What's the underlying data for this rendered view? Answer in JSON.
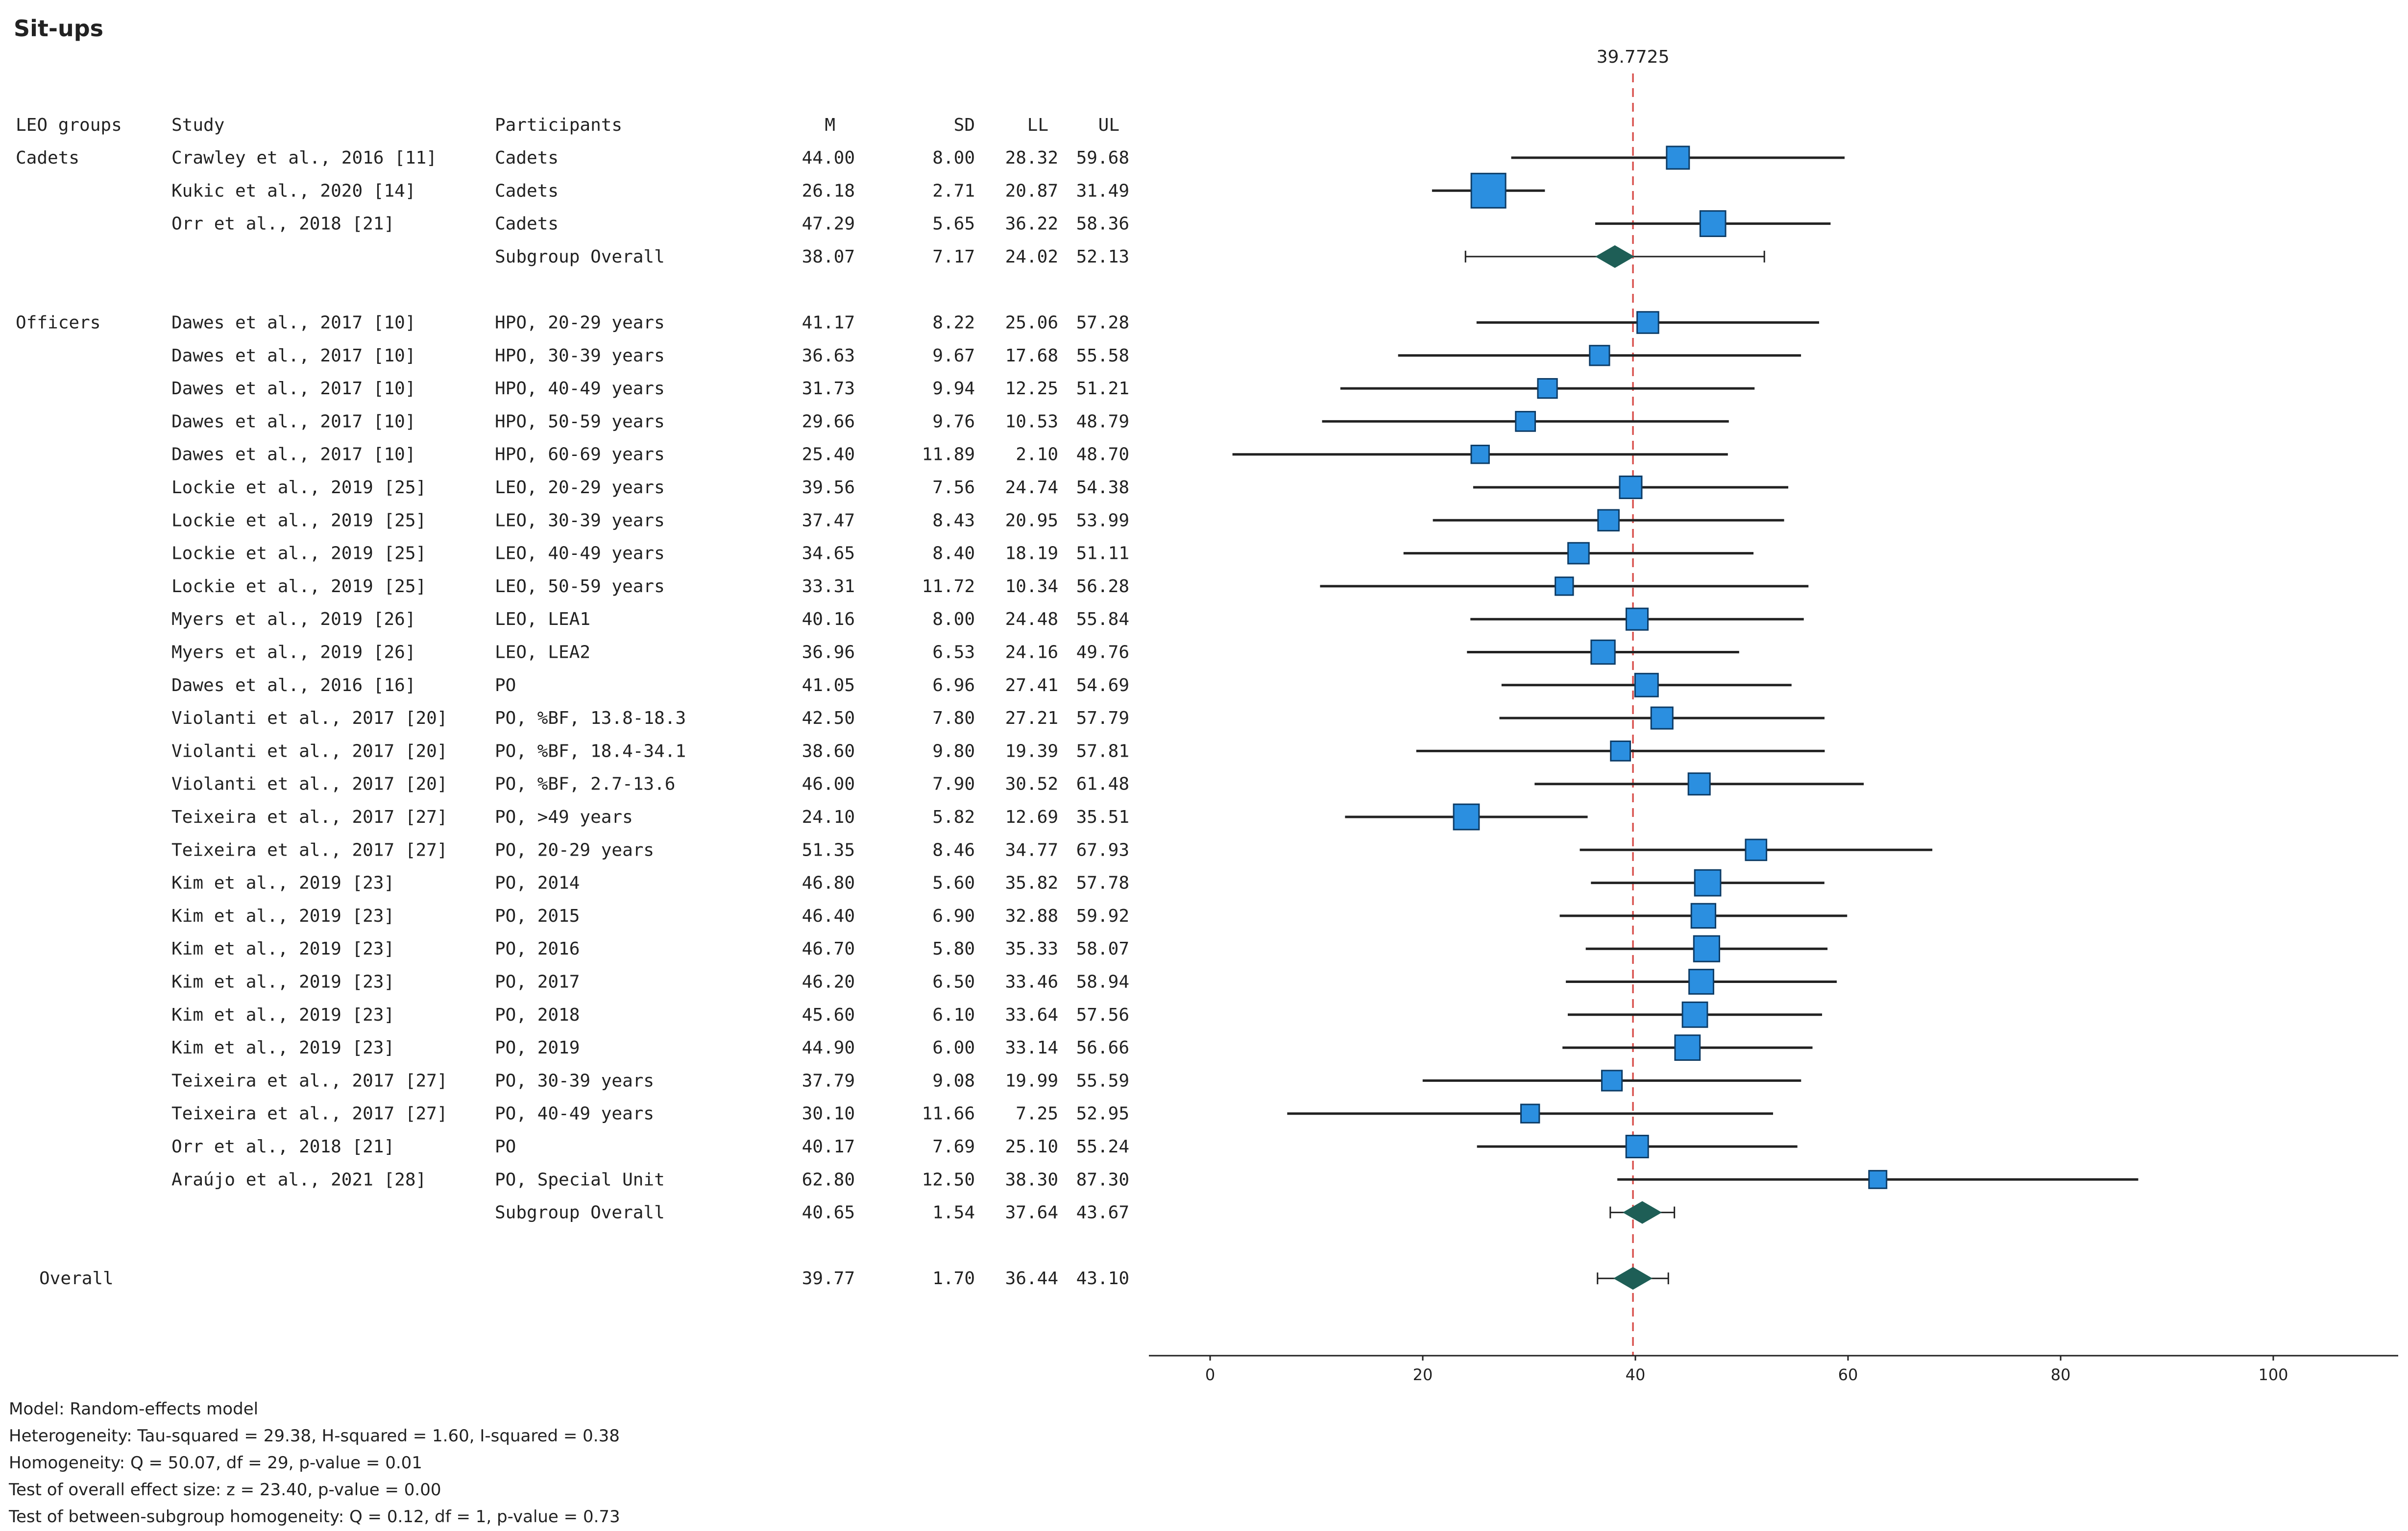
{
  "chart_data": {
    "type": "forest",
    "title": "Sit-ups",
    "reference_label": "39.7725",
    "reference_value": 39.7725,
    "xlim": [
      -5,
      112
    ],
    "xticks": [
      0,
      20,
      40,
      60,
      80,
      100
    ],
    "columns": [
      "LEO groups",
      "Study",
      "Participants",
      "M",
      "SD",
      "LL",
      "UL"
    ],
    "rows": [
      {
        "type": "study",
        "group": "Cadets",
        "study": "Crawley et al., 2016 [11]",
        "participants": "Cadets",
        "m": "44.00",
        "sd": "8.00",
        "ll": "28.32",
        "ul": "59.68",
        "size": 0.5
      },
      {
        "type": "study",
        "group": "",
        "study": "Kukic et al., 2020 [14]",
        "participants": "Cadets",
        "m": "26.18",
        "sd": "2.71",
        "ll": "20.87",
        "ul": "31.49",
        "size": 1.0
      },
      {
        "type": "study",
        "group": "",
        "study": "Orr et al., 2018 [21]",
        "participants": "Cadets",
        "m": "47.29",
        "sd": "5.65",
        "ll": "36.22",
        "ul": "58.36",
        "size": 0.62
      },
      {
        "type": "summary",
        "group": "",
        "study": "",
        "participants": "Subgroup Overall",
        "m": "38.07",
        "sd": "7.17",
        "ll": "24.02",
        "ul": "52.13"
      },
      {
        "type": "blank"
      },
      {
        "type": "study",
        "group": "Officers",
        "study": "Dawes et al., 2017 [10]",
        "participants": "HPO, 20-29 years",
        "m": "41.17",
        "sd": "8.22",
        "ll": "25.06",
        "ul": "57.28",
        "size": 0.45
      },
      {
        "type": "study",
        "group": "",
        "study": "Dawes et al., 2017 [10]",
        "participants": "HPO, 30-39 years",
        "m": "36.63",
        "sd": "9.67",
        "ll": "17.68",
        "ul": "55.58",
        "size": 0.38
      },
      {
        "type": "study",
        "group": "",
        "study": "Dawes et al., 2017 [10]",
        "participants": "HPO, 40-49 years",
        "m": "31.73",
        "sd": "9.94",
        "ll": "12.25",
        "ul": "51.21",
        "size": 0.36
      },
      {
        "type": "study",
        "group": "",
        "study": "Dawes et al., 2017 [10]",
        "participants": "HPO, 50-59 years",
        "m": "29.66",
        "sd": "9.76",
        "ll": "10.53",
        "ul": "48.79",
        "size": 0.37
      },
      {
        "type": "study",
        "group": "",
        "study": "Dawes et al., 2017 [10]",
        "participants": "HPO, 60-69 years",
        "m": "25.40",
        "sd": "11.89",
        "ll": "2.10",
        "ul": "48.70",
        "size": 0.3
      },
      {
        "type": "study",
        "group": "",
        "study": "Lockie et al., 2019 [25]",
        "participants": "LEO, 20-29 years",
        "m": "39.56",
        "sd": "7.56",
        "ll": "24.74",
        "ul": "54.38",
        "size": 0.48
      },
      {
        "type": "study",
        "group": "",
        "study": "Lockie et al., 2019 [25]",
        "participants": "LEO, 30-39 years",
        "m": "37.47",
        "sd": "8.43",
        "ll": "20.95",
        "ul": "53.99",
        "size": 0.43
      },
      {
        "type": "study",
        "group": "",
        "study": "Lockie et al., 2019 [25]",
        "participants": "LEO, 40-49 years",
        "m": "34.65",
        "sd": "8.40",
        "ll": "18.19",
        "ul": "51.11",
        "size": 0.43
      },
      {
        "type": "study",
        "group": "",
        "study": "Lockie et al., 2019 [25]",
        "participants": "LEO, 50-59 years",
        "m": "33.31",
        "sd": "11.72",
        "ll": "10.34",
        "ul": "56.28",
        "size": 0.3
      },
      {
        "type": "study",
        "group": "",
        "study": "Myers et al., 2019 [26]",
        "participants": "LEO, LEA1",
        "m": "40.16",
        "sd": "8.00",
        "ll": "24.48",
        "ul": "55.84",
        "size": 0.46
      },
      {
        "type": "study",
        "group": "",
        "study": "Myers et al., 2019 [26]",
        "participants": "LEO, LEA2",
        "m": "36.96",
        "sd": "6.53",
        "ll": "24.16",
        "ul": "49.76",
        "size": 0.55
      },
      {
        "type": "study",
        "group": "",
        "study": "Dawes et al., 2016 [16]",
        "participants": "PO",
        "m": "41.05",
        "sd": "6.96",
        "ll": "27.41",
        "ul": "54.69",
        "size": 0.52
      },
      {
        "type": "study",
        "group": "",
        "study": "Violanti et al., 2017 [20]",
        "participants": "PO, %BF, 13.8-18.3",
        "m": "42.50",
        "sd": "7.80",
        "ll": "27.21",
        "ul": "57.79",
        "size": 0.46
      },
      {
        "type": "study",
        "group": "",
        "study": "Violanti et al., 2017 [20]",
        "participants": "PO, %BF, 18.4-34.1",
        "m": "38.60",
        "sd": "9.80",
        "ll": "19.39",
        "ul": "57.81",
        "size": 0.37
      },
      {
        "type": "study",
        "group": "",
        "study": "Violanti et al., 2017 [20]",
        "participants": "PO, %BF, 2.7-13.6",
        "m": "46.00",
        "sd": "7.90",
        "ll": "30.52",
        "ul": "61.48",
        "size": 0.46
      },
      {
        "type": "study",
        "group": "",
        "study": "Teixeira et al., 2017 [27]",
        "participants": "PO, >49 years",
        "m": "24.10",
        "sd": "5.82",
        "ll": "12.69",
        "ul": "35.51",
        "size": 0.62
      },
      {
        "type": "study",
        "group": "",
        "study": "Teixeira et al., 2017 [27]",
        "participants": "PO, 20-29 years",
        "m": "51.35",
        "sd": "8.46",
        "ll": "34.77",
        "ul": "67.93",
        "size": 0.43
      },
      {
        "type": "study",
        "group": "",
        "study": "Kim et al., 2019 [23]",
        "participants": "PO, 2014",
        "m": "46.80",
        "sd": "5.60",
        "ll": "35.82",
        "ul": "57.78",
        "size": 0.64
      },
      {
        "type": "study",
        "group": "",
        "study": "Kim et al., 2019 [23]",
        "participants": "PO, 2015",
        "m": "46.40",
        "sd": "6.90",
        "ll": "32.88",
        "ul": "59.92",
        "size": 0.57
      },
      {
        "type": "study",
        "group": "",
        "study": "Kim et al., 2019 [23]",
        "participants": "PO, 2016",
        "m": "46.70",
        "sd": "5.80",
        "ll": "35.33",
        "ul": "58.07",
        "size": 0.63
      },
      {
        "type": "study",
        "group": "",
        "study": "Kim et al., 2019 [23]",
        "participants": "PO, 2017",
        "m": "46.20",
        "sd": "6.50",
        "ll": "33.46",
        "ul": "58.94",
        "size": 0.58
      },
      {
        "type": "study",
        "group": "",
        "study": "Kim et al., 2019 [23]",
        "participants": "PO, 2018",
        "m": "45.60",
        "sd": "6.10",
        "ll": "33.64",
        "ul": "57.56",
        "size": 0.6
      },
      {
        "type": "study",
        "group": "",
        "study": "Kim et al., 2019 [23]",
        "participants": "PO, 2019",
        "m": "44.90",
        "sd": "6.00",
        "ll": "33.14",
        "ul": "56.66",
        "size": 0.6
      },
      {
        "type": "study",
        "group": "",
        "study": "Teixeira et al., 2017 [27]",
        "participants": "PO, 30-39 years",
        "m": "37.79",
        "sd": "9.08",
        "ll": "19.99",
        "ul": "55.59",
        "size": 0.4
      },
      {
        "type": "study",
        "group": "",
        "study": "Teixeira et al., 2017 [27]",
        "participants": "PO, 40-49 years",
        "m": "30.10",
        "sd": "11.66",
        "ll": "7.25",
        "ul": "52.95",
        "size": 0.32
      },
      {
        "type": "study",
        "group": "",
        "study": "Orr et al., 2018 [21]",
        "participants": "PO",
        "m": "40.17",
        "sd": "7.69",
        "ll": "25.10",
        "ul": "55.24",
        "size": 0.48
      },
      {
        "type": "study",
        "group": "",
        "study": "Araújo et al., 2021 [28]",
        "participants": "PO, Special  Unit",
        "m": "62.80",
        "sd": "12.50",
        "ll": "38.30",
        "ul": "87.30",
        "size": 0.29
      },
      {
        "type": "summary",
        "group": "",
        "study": "",
        "participants": "Subgroup Overall",
        "m": "40.65",
        "sd": "1.54",
        "ll": "37.64",
        "ul": "43.67"
      },
      {
        "type": "blank"
      },
      {
        "type": "overall",
        "group": "Overall",
        "study": "",
        "participants": "",
        "m": "39.77",
        "sd": "1.70",
        "ll": "36.44",
        "ul": "43.10"
      }
    ],
    "footnotes": [
      "Model: Random-effects model",
      "Heterogeneity: Tau-squared = 29.38, H-squared = 1.60, I-squared = 0.38",
      "Homogeneity: Q = 50.07, df = 29, p-value = 0.01",
      "Test of overall effect size: z = 23.40, p-value = 0.00",
      "Test of between-subgroup homogeneity: Q = 0.12, df = 1, p-value = 0.73"
    ],
    "colors": {
      "square": "#2b8fe0",
      "square_stroke": "#0d3c66",
      "diamond": "#1e5e56",
      "reference_line": "#d9534f",
      "line": "#222222"
    }
  }
}
